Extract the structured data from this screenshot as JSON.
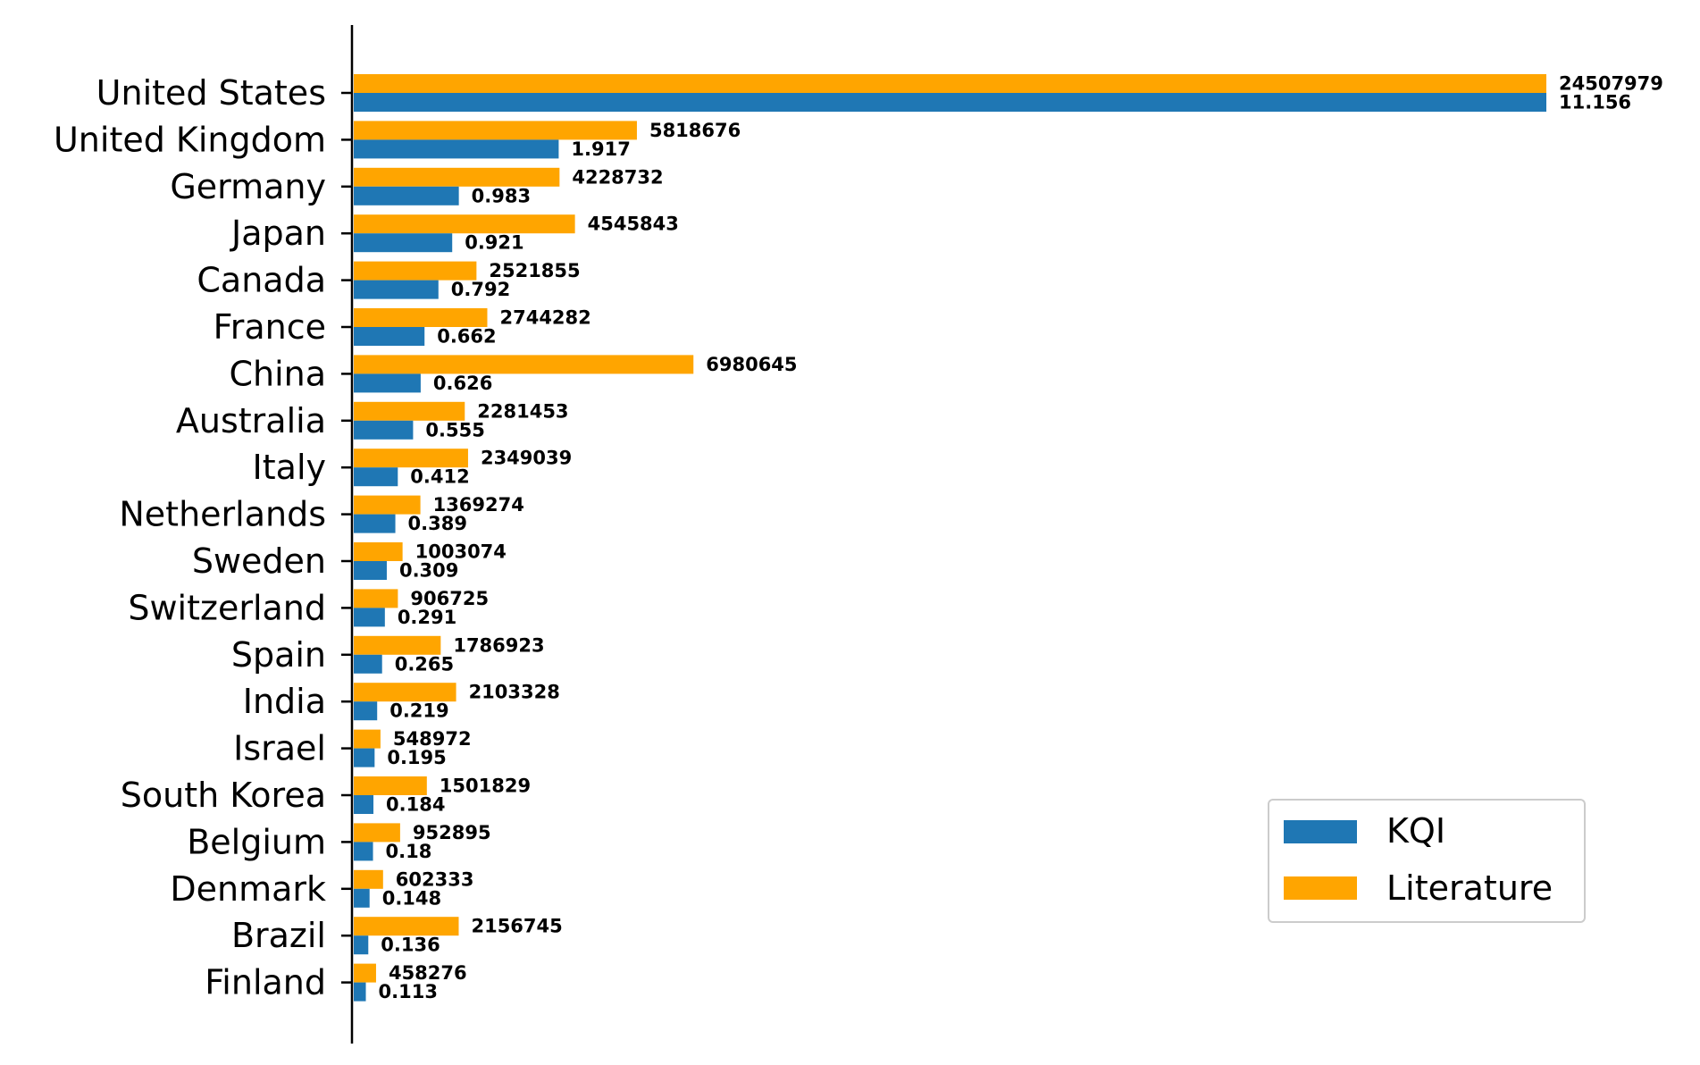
{
  "chart_data": {
    "type": "bar",
    "orientation": "horizontal",
    "categories": [
      "United States",
      "United Kingdom",
      "Germany",
      "Japan",
      "Canada",
      "France",
      "China",
      "Australia",
      "Italy",
      "Netherlands",
      "Sweden",
      "Switzerland",
      "Spain",
      "India",
      "Israel",
      "South Korea",
      "Belgium",
      "Denmark",
      "Brazil",
      "Finland"
    ],
    "series": [
      {
        "name": "KQI",
        "color": "#1f77b4",
        "values": [
          11.156,
          1.917,
          0.983,
          0.921,
          0.792,
          0.662,
          0.626,
          0.555,
          0.412,
          0.389,
          0.309,
          0.291,
          0.265,
          0.219,
          0.195,
          0.184,
          0.18,
          0.148,
          0.136,
          0.113
        ],
        "labels": [
          "11.156",
          "1.917",
          "0.983",
          "0.921",
          "0.792",
          "0.662",
          "0.626",
          "0.555",
          "0.412",
          "0.389",
          "0.309",
          "0.291",
          "0.265",
          "0.219",
          "0.195",
          "0.184",
          "0.18",
          "0.148",
          "0.136",
          "0.113"
        ]
      },
      {
        "name": "Literature",
        "color": "#ffa500",
        "values": [
          24507979,
          5818676,
          4228732,
          4545843,
          2521855,
          2744282,
          6980645,
          2281453,
          2349039,
          1369274,
          1003074,
          906725,
          1786923,
          2103328,
          548972,
          1501829,
          952895,
          602333,
          2156745,
          458276
        ],
        "labels": [
          "24507979",
          "5818676",
          "4228732",
          "4545843",
          "2521855",
          "2744282",
          "6980645",
          "2281453",
          "2349039",
          "1369274",
          "1003074",
          "906725",
          "1786923",
          "2103328",
          "548972",
          "1501829",
          "952895",
          "602333",
          "2156745",
          "458276"
        ]
      }
    ],
    "title": "",
    "xlabel": "",
    "ylabel": "",
    "x_axis_visible": false,
    "grid": false,
    "legend_position": "lower-right"
  }
}
